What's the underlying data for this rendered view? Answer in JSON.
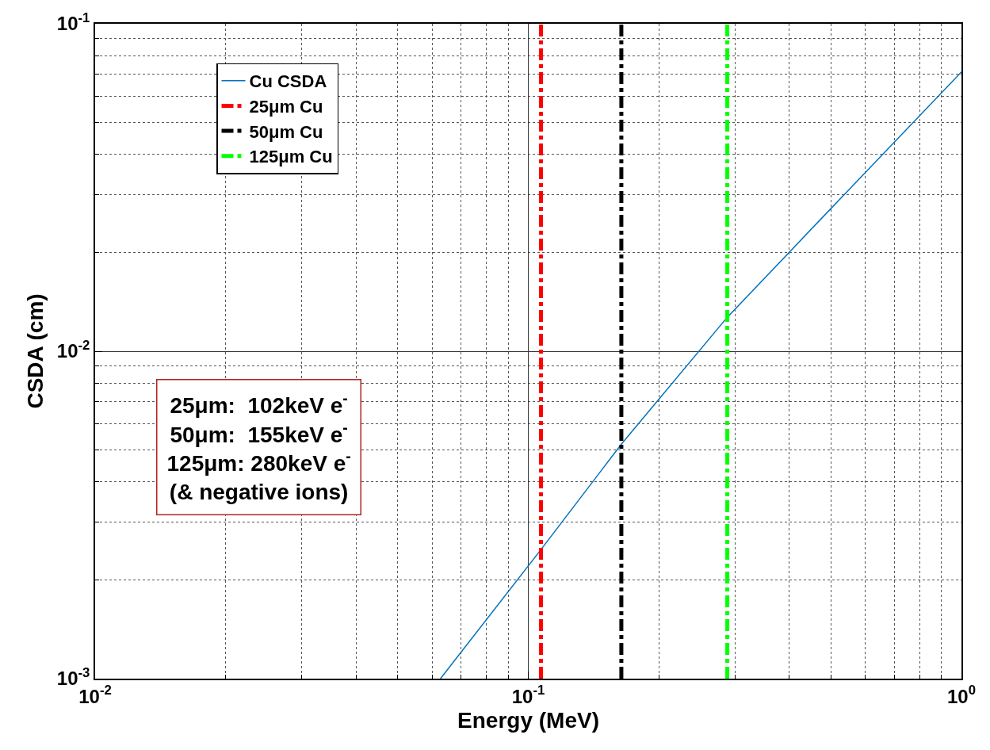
{
  "chart_data": {
    "type": "line",
    "xlabel": "Energy (MeV)",
    "ylabel": "CSDA (cm)",
    "log": "xy",
    "grid": true,
    "legend": "top left",
    "line_style": "solid",
    "marker": "none",
    "xlim": [
      0.01,
      1
    ],
    "ylim": [
      0.001,
      0.1
    ],
    "xticks": [
      {
        "value": 0.01,
        "label": "10$^{-2}$"
      },
      {
        "value": 0.1,
        "label": "10$^{-1}$"
      },
      {
        "value": 1,
        "label": "10$^{0}$"
      }
    ],
    "yticks": [
      {
        "value": 0.001,
        "label": "10$^{-3}$"
      },
      {
        "value": 0.01,
        "label": "10$^{-2}$"
      },
      {
        "value": 0.1,
        "label": "10$^{-1}$"
      }
    ],
    "series": [
      {
        "name": "Cu CSDA",
        "color": "#0072bd",
        "x": [
          0.0627,
          0.107,
          0.164,
          0.288,
          0.5,
          1
        ],
        "values": [
          0.001,
          0.00248,
          0.0052,
          0.0127,
          0.0273,
          0.0713
        ]
      },
      {
        "name": "25μm Cu",
        "color": "#ff0000",
        "line_style": "dashed",
        "x": [
          0.107,
          0.107
        ],
        "values": [
          0.001,
          0.1
        ]
      },
      {
        "name": "50μm Cu",
        "color": "#000000",
        "line_style": "dashed",
        "x": [
          0.164,
          0.164
        ],
        "values": [
          0.001,
          0.1
        ]
      },
      {
        "name": "125μm Cu",
        "color": "#00ff00",
        "line_style": "dashed",
        "x": [
          0.288,
          0.288
        ],
        "values": [
          0.001,
          0.1
        ]
      }
    ],
    "annotations": [
      "25μm:  102keV e$^{-}$",
      "50μm:  155keV e$^{-}$",
      "125μm: 280keV e$^{-}$",
      "(& negative ions)"
    ]
  }
}
